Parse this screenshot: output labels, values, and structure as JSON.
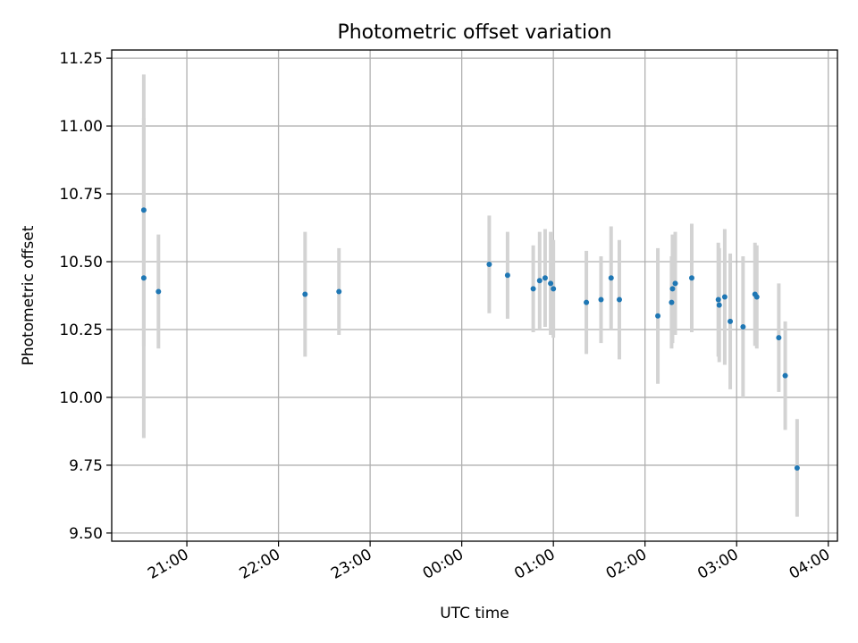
{
  "chart_data": {
    "type": "scatter",
    "title": "Photometric offset variation",
    "xlabel": "UTC time",
    "ylabel": "Photometric offset",
    "x_unit": "UTC hours, relative to midnight (negative = previous day)",
    "xlim": [
      -3.82,
      4.1
    ],
    "ylim": [
      9.47,
      11.28
    ],
    "x_ticks": [
      {
        "value": -3,
        "label": "21:00"
      },
      {
        "value": -2,
        "label": "22:00"
      },
      {
        "value": -1,
        "label": "23:00"
      },
      {
        "value": 0,
        "label": "00:00"
      },
      {
        "value": 1,
        "label": "01:00"
      },
      {
        "value": 2,
        "label": "02:00"
      },
      {
        "value": 3,
        "label": "03:00"
      },
      {
        "value": 4,
        "label": "04:00"
      }
    ],
    "y_ticks": [
      {
        "value": 9.5,
        "label": "9.50"
      },
      {
        "value": 9.75,
        "label": "9.75"
      },
      {
        "value": 10.0,
        "label": "10.00"
      },
      {
        "value": 10.25,
        "label": "10.25"
      },
      {
        "value": 10.5,
        "label": "10.50"
      },
      {
        "value": 10.75,
        "label": "10.75"
      },
      {
        "value": 11.0,
        "label": "11.00"
      },
      {
        "value": 11.25,
        "label": "11.25"
      }
    ],
    "grid": true,
    "marker_color": "#1f77b4",
    "errorbar_color": "#d3d3d3",
    "points": [
      {
        "x": -3.47,
        "y": 10.69,
        "err": 0.5
      },
      {
        "x": -3.47,
        "y": 10.44,
        "err": 0.59
      },
      {
        "x": -3.31,
        "y": 10.39,
        "err": 0.21
      },
      {
        "x": -1.71,
        "y": 10.38,
        "err": 0.23
      },
      {
        "x": -1.34,
        "y": 10.39,
        "err": 0.16
      },
      {
        "x": 0.3,
        "y": 10.49,
        "err": 0.18
      },
      {
        "x": 0.5,
        "y": 10.45,
        "err": 0.16
      },
      {
        "x": 0.78,
        "y": 10.4,
        "err": 0.16
      },
      {
        "x": 0.85,
        "y": 10.43,
        "err": 0.18
      },
      {
        "x": 0.91,
        "y": 10.44,
        "err": 0.18
      },
      {
        "x": 0.97,
        "y": 10.42,
        "err": 0.19
      },
      {
        "x": 1.0,
        "y": 10.4,
        "err": 0.18
      },
      {
        "x": 1.36,
        "y": 10.35,
        "err": 0.19
      },
      {
        "x": 1.52,
        "y": 10.36,
        "err": 0.16
      },
      {
        "x": 1.63,
        "y": 10.44,
        "err": 0.19
      },
      {
        "x": 1.72,
        "y": 10.36,
        "err": 0.22
      },
      {
        "x": 2.14,
        "y": 10.3,
        "err": 0.25
      },
      {
        "x": 2.29,
        "y": 10.35,
        "err": 0.17
      },
      {
        "x": 2.3,
        "y": 10.4,
        "err": 0.2
      },
      {
        "x": 2.33,
        "y": 10.42,
        "err": 0.19
      },
      {
        "x": 2.51,
        "y": 10.44,
        "err": 0.2
      },
      {
        "x": 2.8,
        "y": 10.36,
        "err": 0.21
      },
      {
        "x": 2.81,
        "y": 10.34,
        "err": 0.21
      },
      {
        "x": 2.87,
        "y": 10.37,
        "err": 0.25
      },
      {
        "x": 2.93,
        "y": 10.28,
        "err": 0.25
      },
      {
        "x": 3.07,
        "y": 10.26,
        "err": 0.26
      },
      {
        "x": 3.2,
        "y": 10.38,
        "err": 0.19
      },
      {
        "x": 3.22,
        "y": 10.37,
        "err": 0.19
      },
      {
        "x": 3.46,
        "y": 10.22,
        "err": 0.2
      },
      {
        "x": 3.53,
        "y": 10.08,
        "err": 0.2
      },
      {
        "x": 3.66,
        "y": 9.74,
        "err": 0.18
      }
    ]
  }
}
